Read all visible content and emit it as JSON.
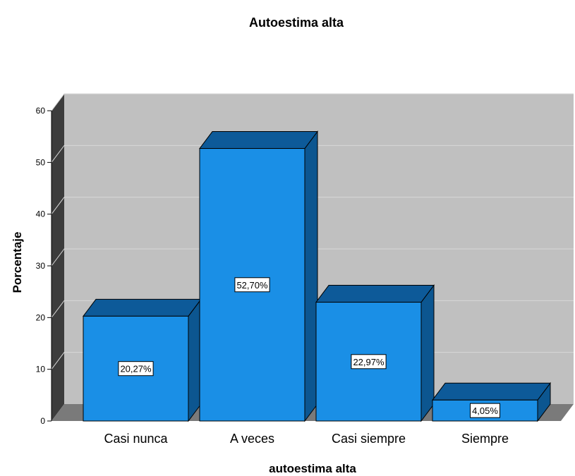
{
  "chart_data": {
    "type": "bar",
    "title": "Autoestima alta",
    "xlabel": "autoestima alta",
    "ylabel": "Porcentaje",
    "categories": [
      "Casi nunca",
      "A veces",
      "Casi siempre",
      "Siempre"
    ],
    "values": [
      20.27,
      52.7,
      22.97,
      4.05
    ],
    "data_labels": [
      "20,27%",
      "52,70%",
      "22,97%",
      "4,05%"
    ],
    "ylim": [
      0,
      60
    ],
    "yticks": [
      0,
      10,
      20,
      30,
      40,
      50,
      60
    ],
    "grid": true,
    "legend": "none",
    "style": "3d",
    "colors": {
      "bar_front": "#1a8fe6",
      "bar_top": "#0d5a99",
      "bar_side": "#0c5690",
      "wall_back": "#c0c0c0",
      "wall_left": "#3c3c3c",
      "floor": "#7a7a7a",
      "gridline": "#d8d8d8"
    }
  }
}
